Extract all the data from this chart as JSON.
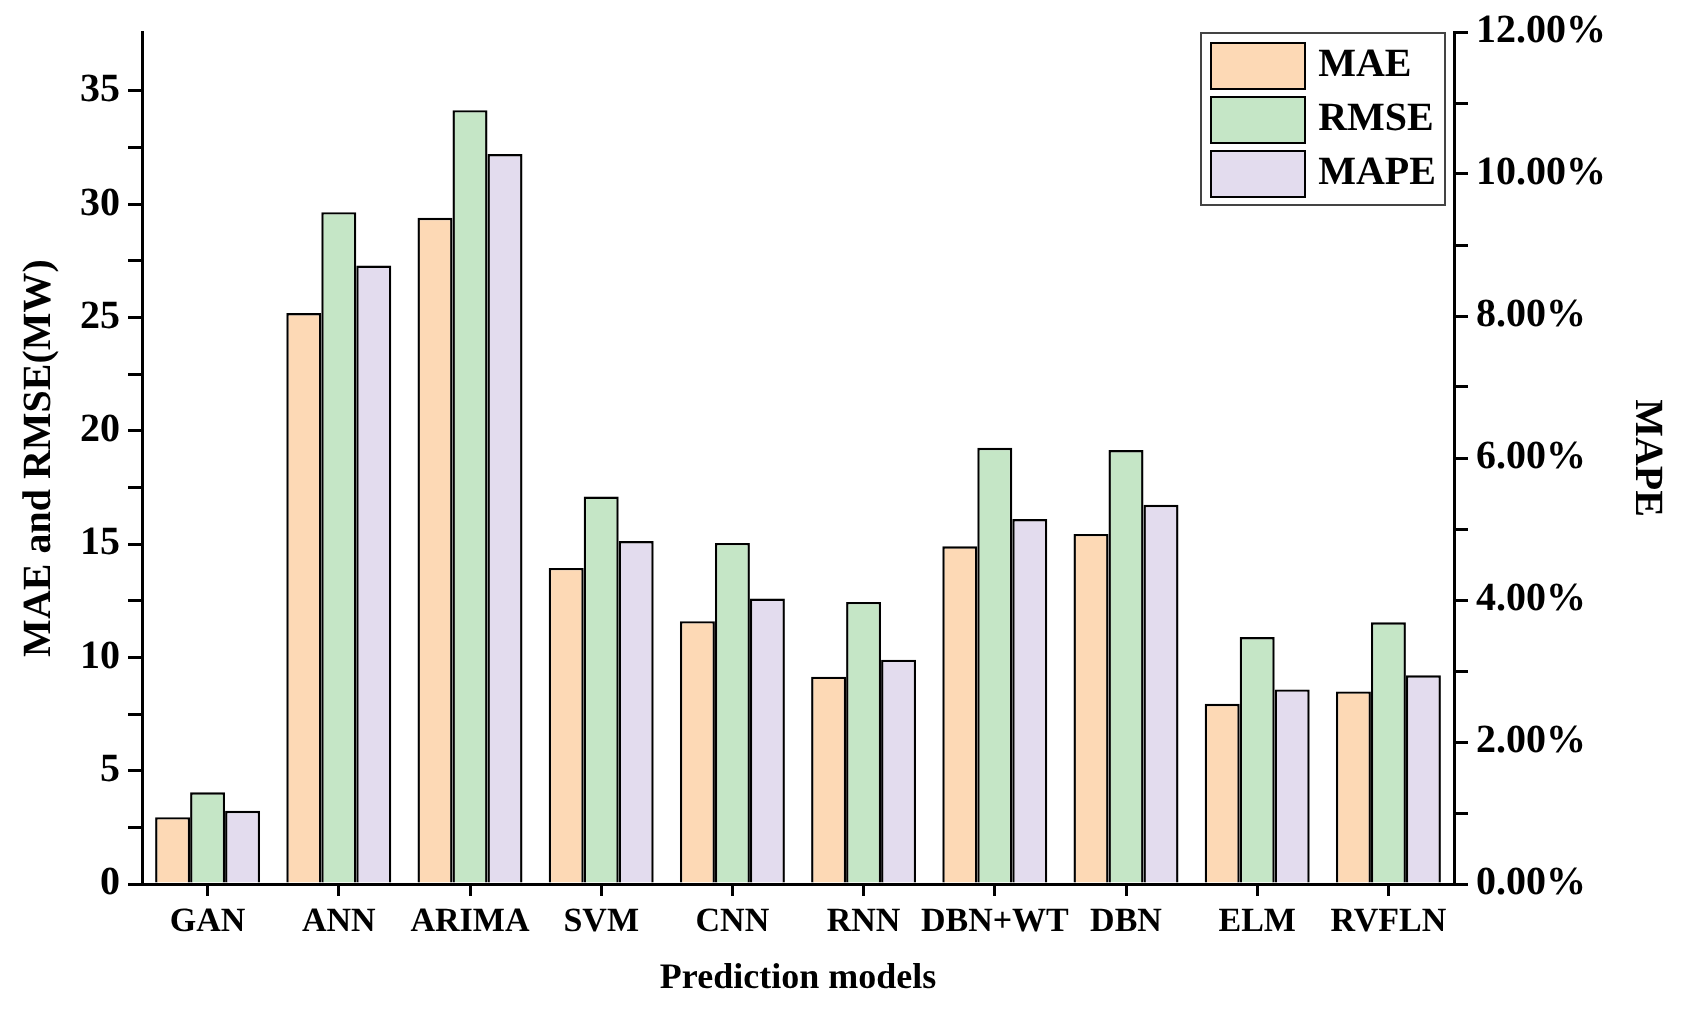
{
  "chart_data": {
    "type": "bar",
    "categories": [
      "GAN",
      "ANN",
      "ARIMA",
      "SVM",
      "CNN",
      "RNN",
      "DBN+WT",
      "DBN",
      "ELM",
      "RVFLN"
    ],
    "series": [
      {
        "name": "MAE",
        "color": "#fdd9b5",
        "values": [
          2.95,
          25.2,
          29.4,
          13.95,
          11.6,
          9.15,
          14.9,
          15.45,
          7.95,
          8.5
        ]
      },
      {
        "name": "RMSE",
        "color": "#c5e6c6",
        "values": [
          4.05,
          29.65,
          34.15,
          17.1,
          15.05,
          12.45,
          19.25,
          19.15,
          10.9,
          11.55
        ]
      },
      {
        "name": "MAPE",
        "color": "#e3dcee",
        "axis": "y2",
        "values": [
          1.03,
          8.71,
          10.28,
          4.83,
          4.02,
          3.16,
          5.14,
          5.34,
          2.74,
          2.94
        ]
      }
    ],
    "xlabel": "Prediction models",
    "ylabel": "MAE and RMSE(MW)",
    "y2label": "MAPE",
    "ylim": [
      0,
      37.6
    ],
    "yticks": [
      0,
      {
        "value": 2.5,
        "label": null
      },
      5,
      {
        "value": 7.5,
        "label": null
      },
      10,
      {
        "value": 12.5,
        "label": null
      },
      15,
      {
        "value": 17.5,
        "label": null
      },
      20,
      {
        "value": 22.5,
        "label": null
      },
      25,
      {
        "value": 27.5,
        "label": null
      },
      30,
      {
        "value": 32.5,
        "label": null
      },
      35
    ],
    "y2lim": [
      0,
      12
    ],
    "y2ticks": [
      {
        "value": 0,
        "label": "0.00%"
      },
      {
        "value": 1,
        "label": null
      },
      {
        "value": 2,
        "label": "2.00%"
      },
      {
        "value": 3,
        "label": null
      },
      {
        "value": 4,
        "label": "4.00%"
      },
      {
        "value": 5,
        "label": null
      },
      {
        "value": 6,
        "label": "6.00%"
      },
      {
        "value": 7,
        "label": null
      },
      {
        "value": 8,
        "label": "8.00%"
      },
      {
        "value": 9,
        "label": null
      },
      {
        "value": 10,
        "label": "10.00%"
      },
      {
        "value": 11,
        "label": null
      },
      {
        "value": 12,
        "label": "12.00%"
      }
    ],
    "grid": false,
    "legend": "top right"
  }
}
